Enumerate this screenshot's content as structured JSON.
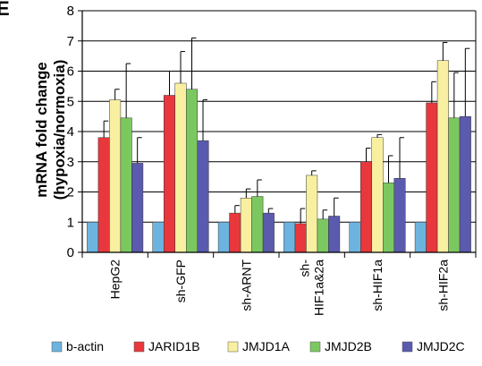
{
  "panel_letter": "E",
  "chart_data": {
    "type": "bar",
    "title": "",
    "xlabel": "",
    "ylabel_lines": [
      "mRNA fold change",
      "(hypoxia/normoxia)"
    ],
    "ylim": [
      0,
      8
    ],
    "yticks": [
      0,
      1,
      2,
      3,
      4,
      5,
      6,
      7,
      8
    ],
    "grid": true,
    "legend_position": "bottom",
    "categories": [
      "HepG2",
      "sh-GFP",
      "sh-ARNT",
      "sh-HIF1a&2a",
      "sh-HIF1a",
      "sh-HIF2a"
    ],
    "category_label_lines": [
      [
        "HepG2"
      ],
      [
        "sh-GFP"
      ],
      [
        "sh-ARNT"
      ],
      [
        "sh-",
        "HIF1a&2a"
      ],
      [
        "sh-HIF1a"
      ],
      [
        "sh-HIF2a"
      ]
    ],
    "series": [
      {
        "name": "b-actin",
        "color": "#6cb4e0",
        "values": [
          1,
          1,
          1,
          1,
          1,
          1
        ],
        "errors": [
          0,
          0,
          0,
          0,
          0,
          0
        ]
      },
      {
        "name": "JARID1B",
        "color": "#e8383d",
        "values": [
          3.8,
          5.2,
          1.3,
          0.95,
          3.0,
          4.95
        ],
        "errors": [
          0.55,
          0.8,
          0.25,
          0.5,
          0.45,
          0.7
        ]
      },
      {
        "name": "JMJD1A",
        "color": "#f8f0a0",
        "values": [
          5.05,
          5.6,
          1.8,
          2.55,
          3.8,
          6.35
        ],
        "errors": [
          0.35,
          1.05,
          0.3,
          0.15,
          0.1,
          0.6
        ]
      },
      {
        "name": "JMJD2B",
        "color": "#7cc860",
        "values": [
          4.45,
          5.4,
          1.85,
          1.1,
          2.3,
          4.45
        ],
        "errors": [
          1.8,
          1.7,
          0.55,
          0.3,
          0.9,
          1.5
        ]
      },
      {
        "name": "JMJD2C",
        "color": "#5a5aae",
        "values": [
          2.95,
          3.7,
          1.3,
          1.2,
          2.45,
          4.5
        ],
        "errors": [
          0.85,
          1.35,
          0.15,
          0.6,
          1.35,
          2.25
        ]
      }
    ]
  }
}
